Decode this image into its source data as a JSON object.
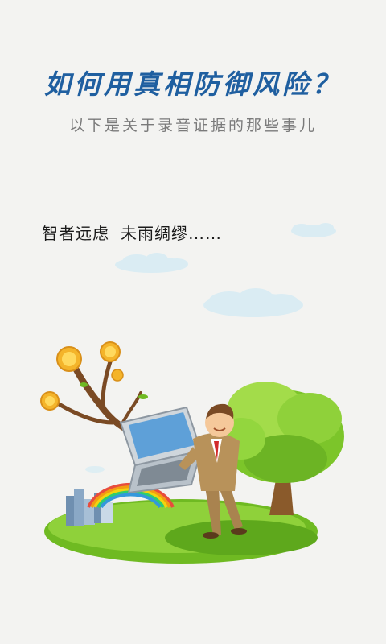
{
  "header": {
    "title": "如何用真相防御风险？",
    "subtitle": "以下是关于录音证据的那些事儿"
  },
  "motto": {
    "part1": "智者远虑",
    "part2": "未雨绸缪……"
  },
  "colors": {
    "background": "#f3f3f1",
    "title": "#1f5fa0",
    "subtitle": "#7a7a7a",
    "grass": "#7cc52a",
    "tree": "#8fcf3a"
  },
  "illustration": {
    "icons": [
      "cloud-icon",
      "coin-icon",
      "laptop-icon",
      "businessman-icon",
      "tree-icon",
      "rainbow-icon",
      "city-icon"
    ]
  }
}
